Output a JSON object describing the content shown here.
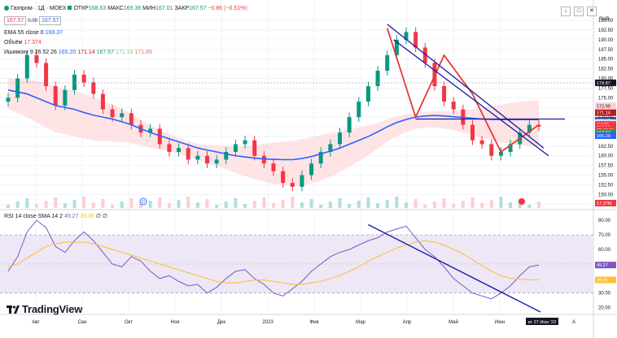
{
  "header": {
    "symbol_line": "Газпром · 1Д · MOEX",
    "ohlc": {
      "o_label": "ОТКР",
      "o_value": "168.63",
      "h_label": "МАКС",
      "h_value": "169.38",
      "l_label": "МИН",
      "l_value": "167.01",
      "c_label": "ЗАКР",
      "c_value": "167.57",
      "change": "−0.86 (−0.51%)"
    },
    "price_boxes": [
      "167.57",
      "167.57"
    ],
    "spread": "0.00"
  },
  "indicators": {
    "ema": {
      "label": "EMA 55 close 0",
      "value": "169.37"
    },
    "volume": {
      "label": "Объём",
      "value": "17.374"
    },
    "ichimoku": {
      "label": "Ишимоку 9 26 52 26",
      "values": [
        "165.20",
        "171.14",
        "167.57",
        "171.15",
        "171.89"
      ]
    }
  },
  "rsi_header": {
    "label": "RSI 14 close SMA 14 2",
    "value1": "49.27",
    "value2": "39.06",
    "value3": "∅",
    "value4": "∅"
  },
  "currency": "RUB",
  "crosshair_price": "178.87",
  "price_axis_badges": [
    {
      "text": "172.90",
      "color": "#ffcdd2"
    },
    {
      "text": "171.14",
      "color": "#b71c1c"
    },
    {
      "text": "169.17",
      "color": "#1e40af"
    },
    {
      "text": "168.61",
      "color": "#e0e0e0"
    },
    {
      "text": "GAZP",
      "color": "#f23645"
    },
    {
      "text": "167.57",
      "color": "#f23645"
    },
    {
      "text": "03:40:35",
      "color": "#f23645"
    },
    {
      "text": "167.57",
      "color": "#388e3c"
    },
    {
      "text": "165.20",
      "color": "#2962ff"
    }
  ],
  "rsi_axis_badges": [
    {
      "text": "49.27",
      "color": "#7e57c2"
    },
    {
      "text": "39.06",
      "color": "#fbc02d"
    }
  ],
  "volume_badge": "17.37M",
  "date_badge": "вт 27 Июн '23",
  "logo_text": "TradingView",
  "marker_d": "D",
  "axis_bottom_left": "A",
  "buttons": {
    "collapse": "↓",
    "maximize": "□",
    "close": "✕",
    "settings": "A"
  },
  "chart_data": [
    {
      "type": "candlestick",
      "x": [
        "Авг",
        "Сен",
        "Окт",
        "Ноя",
        "Дек",
        "2023",
        "Фев",
        "Мар",
        "Апр",
        "Май",
        "Июн"
      ],
      "y_ticks": [
        195.0,
        192.5,
        190.0,
        187.5,
        185.0,
        182.5,
        180.0,
        177.5,
        175.0,
        172.5,
        170.0,
        167.5,
        165.0,
        162.5,
        160.0,
        157.5,
        155.0,
        152.5,
        150.0,
        147.5
      ],
      "ylim": [
        146.5,
        196.5
      ],
      "close_series": [
        175,
        180,
        186,
        184,
        178,
        173,
        177,
        181,
        179,
        176,
        172,
        170,
        171,
        168,
        166,
        167,
        163,
        161,
        162,
        159,
        160,
        158,
        159,
        161,
        163,
        164,
        160,
        158,
        156,
        153,
        152,
        155,
        158,
        161,
        163,
        166,
        170,
        174,
        178,
        182,
        186,
        190,
        192,
        188,
        184,
        178,
        174,
        172,
        168,
        164,
        163,
        160,
        161,
        163,
        166,
        168,
        167.57
      ],
      "ema55": [
        177,
        176.5,
        176,
        175,
        174,
        173,
        172.5,
        172,
        171.2,
        170.5,
        170,
        169.5,
        168.8,
        168,
        167,
        166,
        165.2,
        164.4,
        163.6,
        162.8,
        162,
        161.5,
        161,
        160.5,
        160,
        159.7,
        159.4,
        159.2,
        159.1,
        159,
        159,
        159.3,
        159.8,
        160.5,
        161.2,
        162,
        163,
        164,
        165,
        166.2,
        167.5,
        168.6,
        169.4,
        170,
        170.3,
        170.4,
        170.3,
        170.1,
        169.9,
        169.7,
        169.5,
        169.4,
        169.37,
        169.37,
        169.37,
        169.37,
        169.37
      ],
      "series": [
        {
          "name": "EMA 55 close 0",
          "value": 169.37
        },
        {
          "name": "Объём",
          "value": 17.374
        }
      ]
    },
    {
      "type": "line",
      "x": [
        "Авг",
        "Сен",
        "Окт",
        "Ноя",
        "Дек",
        "2023",
        "Фев",
        "Мар",
        "Апр",
        "Май",
        "Июн"
      ],
      "y_ticks": [
        80,
        70,
        60,
        50,
        40,
        30,
        20
      ],
      "ylim": [
        17,
        84
      ],
      "bands": [
        30,
        70
      ],
      "rsi": [
        45,
        55,
        72,
        80,
        75,
        62,
        58,
        66,
        72,
        66,
        58,
        50,
        48,
        55,
        52,
        45,
        40,
        42,
        38,
        35,
        36,
        30,
        34,
        40,
        45,
        46,
        40,
        36,
        30,
        28,
        33,
        38,
        45,
        50,
        55,
        58,
        60,
        63,
        66,
        68,
        72,
        74,
        76,
        68,
        60,
        55,
        48,
        40,
        35,
        30,
        28,
        26,
        30,
        35,
        42,
        48,
        49.27
      ],
      "rsi_sma": [
        48,
        50,
        54,
        58,
        62,
        64,
        65,
        65,
        65,
        64,
        62,
        60,
        58,
        56,
        54,
        52,
        50,
        48,
        46,
        44,
        42,
        40,
        38,
        37,
        37,
        38,
        39,
        39,
        38,
        37,
        36,
        36,
        37,
        38,
        40,
        42,
        45,
        48,
        52,
        55,
        58,
        61,
        63,
        65,
        66,
        65,
        63,
        60,
        57,
        53,
        49,
        45,
        42,
        40,
        39.5,
        39.2,
        39.06
      ],
      "series": [
        {
          "name": "RSI 14 close SMA 14 2",
          "value": 49.27
        },
        {
          "name": "SMA",
          "value": 39.06
        }
      ]
    }
  ],
  "colors": {
    "up": "#089981",
    "down": "#f23645",
    "ema": "#2962ff",
    "rsi": "#7e57c2",
    "rsi_sma": "#fbc02d",
    "band": "#ede7f6",
    "cloud_red": "#ffcdd2",
    "cloud_green": "#c8e6c9",
    "trend_red": "#e53935",
    "trend_blue": "#1a1aa0"
  }
}
